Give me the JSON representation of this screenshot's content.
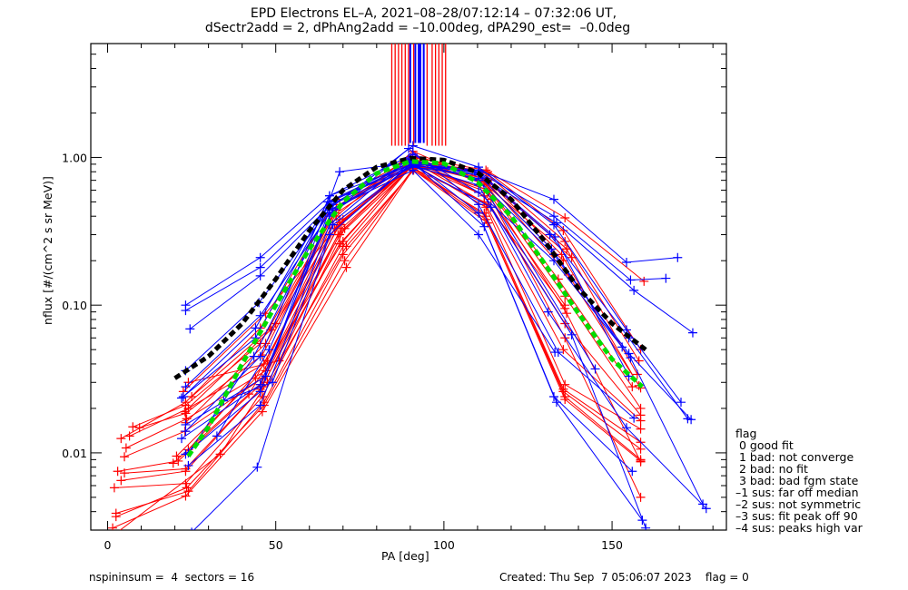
{
  "title_line1": "EPD Electrons EL–A, 2021–08–28/07:12:14 – 07:32:06 UT,",
  "title_line2": "dSectr2add = 2, dPhAng2add = –10.00deg, dPA290_est=  –0.0deg",
  "footer": {
    "left": "nspininsum =  4  sectors = 16",
    "right": "Created: Thu Sep  7 05:06:07 2023    flag = 0"
  },
  "legend": {
    "title": "flag",
    "items": [
      " 0 good fit",
      " 1 bad: not converge",
      " 2 bad: no fit",
      " 3 bad: bad fgm state",
      "–1 sus: far off median",
      "–2 sus: not symmetric",
      "–3 sus: fit peak off 90",
      "–4 sus: peaks high var"
    ]
  },
  "colors": {
    "red": "#ff0000",
    "blue": "#0000ff",
    "black": "#000000",
    "green": "#00dd00"
  },
  "chart_data": {
    "type": "line",
    "title": "EPD Electrons EL-A, 2021-08-28/07:12:14 - 07:32:06 UT, dSectr2add = 2, dPhAng2add = -10.00deg, dPA290_est= -0.0deg",
    "xlabel": "PA [deg]",
    "ylabel": "nflux [#/(cm^2 s sr MeV)]",
    "xscale": "linear",
    "yscale": "log",
    "xlim": [
      -5,
      184
    ],
    "ylim": [
      0.003,
      5.9
    ],
    "xticks": [
      0,
      50,
      100,
      150
    ],
    "xtick_labels": [
      "0",
      "50",
      "100",
      "150"
    ],
    "yticks": [
      0.01,
      0.1,
      1.0
    ],
    "ytick_labels": [
      "0.01",
      "0.10",
      "1.00"
    ],
    "grid": false,
    "legend_position": "right-bottom-outside",
    "peak_markers": {
      "description": "vertical lines at top marking fitted peak PA per curve, from ~1.2 to top of axis",
      "red": [
        84.5,
        85.5,
        86.5,
        87.5,
        88.5,
        89.5,
        91.0,
        95.0,
        96.5,
        97.5,
        98.5,
        99.5,
        100.5
      ],
      "blue": [
        90.0,
        91.5,
        92.5,
        93.0,
        94.0
      ]
    },
    "series": [
      {
        "name": "blue-1",
        "color": "blue",
        "x": [
          23.2,
          45.4,
          66.0,
          90.8,
          110.3,
          132.7,
          154.3,
          169.5
        ],
        "y": [
          0.1,
          0.21,
          0.55,
          0.9,
          0.82,
          0.52,
          0.195,
          0.21
        ]
      },
      {
        "name": "blue-2",
        "color": "blue",
        "x": [
          23.2,
          45.4,
          66.0,
          90.8,
          110.3,
          132.7,
          155.5,
          166.0
        ],
        "y": [
          0.092,
          0.18,
          0.5,
          0.88,
          0.8,
          0.4,
          0.148,
          0.152
        ]
      },
      {
        "name": "blue-3",
        "color": "blue",
        "x": [
          24.5,
          45.4,
          66.0,
          90.8,
          110.3,
          133.5,
          156.5,
          174.0
        ],
        "y": [
          0.069,
          0.158,
          0.47,
          0.86,
          0.76,
          0.36,
          0.126,
          0.065
        ]
      },
      {
        "name": "blue-4",
        "color": "blue",
        "x": [
          23.2,
          45.0,
          66.0,
          90.8,
          110.3,
          132.7,
          154.3,
          170.5
        ],
        "y": [
          0.036,
          0.104,
          0.45,
          1.2,
          0.86,
          0.35,
          0.068,
          0.022
        ]
      },
      {
        "name": "blue-5",
        "color": "blue",
        "x": [
          23.2,
          45.4,
          66.0,
          90.8,
          110.3,
          131.5,
          155.0,
          172.5
        ],
        "y": [
          0.028,
          0.085,
          0.42,
          0.92,
          0.78,
          0.3,
          0.06,
          0.017
        ]
      },
      {
        "name": "blue-6",
        "color": "blue",
        "x": [
          22.5,
          44.0,
          65.5,
          90.8,
          110.3,
          132.7,
          155.0,
          173.5
        ],
        "y": [
          0.024,
          0.07,
          0.5,
          0.95,
          0.7,
          0.22,
          0.047,
          0.0168
        ]
      },
      {
        "name": "blue-7",
        "color": "blue",
        "x": [
          23.2,
          45.4,
          66.0,
          90.8,
          110.3,
          132.7,
          155.5,
          177.0
        ],
        "y": [
          0.014,
          0.045,
          0.55,
          1.05,
          0.58,
          0.2,
          0.044,
          0.0045
        ]
      },
      {
        "name": "blue-8",
        "color": "blue",
        "x": [
          23.2,
          47.0,
          66.0,
          90.8,
          110.3,
          131.0,
          154.3,
          178.0
        ],
        "y": [
          0.0155,
          0.033,
          0.44,
          0.88,
          0.65,
          0.09,
          0.0148,
          0.0042
        ]
      },
      {
        "name": "blue-9",
        "color": "blue",
        "x": [
          22.0,
          45.4,
          66.0,
          89.5,
          110.3,
          134.0,
          156.5
        ],
        "y": [
          0.0125,
          0.029,
          0.4,
          1.15,
          0.48,
          0.048,
          0.0172
        ]
      },
      {
        "name": "blue-10",
        "color": "blue",
        "x": [
          23.2,
          45.4,
          69.0,
          90.8,
          110.3,
          132.7,
          156.0
        ],
        "y": [
          0.0098,
          0.026,
          0.8,
          0.93,
          0.42,
          0.024,
          0.0075
        ]
      },
      {
        "name": "blue-11",
        "color": "blue",
        "x": [
          24.0,
          45.4,
          66.0,
          89.5,
          112.0,
          133.5,
          159.0
        ],
        "y": [
          0.0082,
          0.021,
          0.35,
          0.98,
          0.34,
          0.022,
          0.0035
        ]
      },
      {
        "name": "blue-12",
        "color": "blue",
        "x": [
          25.0,
          44.5,
          66.0,
          90.0,
          114.0,
          138.0,
          160.0
        ],
        "y": [
          0.0029,
          0.008,
          0.3,
          0.9,
          0.46,
          0.063,
          0.0031
        ]
      },
      {
        "name": "blue-13",
        "color": "blue",
        "x": [
          32.5,
          48.0,
          67.0,
          90.8,
          110.3,
          133.0
        ],
        "y": [
          0.013,
          0.05,
          0.45,
          0.82,
          0.3,
          0.048
        ]
      },
      {
        "name": "blue-14",
        "color": "blue",
        "x": [
          34.5,
          49.0,
          67.0,
          90.8,
          110.3,
          145.0
        ],
        "y": [
          0.0225,
          0.03,
          0.35,
          0.9,
          0.72,
          0.037
        ]
      },
      {
        "name": "blue-15",
        "color": "blue",
        "x": [
          24.0,
          43.5,
          66.5,
          90.8,
          110.3,
          133.0,
          155.0
        ],
        "y": [
          0.01,
          0.045,
          0.48,
          0.95,
          0.8,
          0.29,
          0.033
        ]
      },
      {
        "name": "blue-16",
        "color": "blue",
        "x": [
          22.0,
          44.0,
          66.0,
          91.0,
          110.3,
          132.0,
          153.0
        ],
        "y": [
          0.0235,
          0.06,
          0.5,
          0.92,
          0.76,
          0.24,
          0.052
        ]
      },
      {
        "name": "red-1",
        "color": "red",
        "x": [
          4.0,
          23.2,
          45.4,
          68.0,
          90.8,
          112.5,
          136.0,
          159.5
        ],
        "y": [
          0.0125,
          0.022,
          0.07,
          0.52,
          1.0,
          0.82,
          0.39,
          0.145
        ]
      },
      {
        "name": "red-2",
        "color": "red",
        "x": [
          7.5,
          23.2,
          45.4,
          68.0,
          90.8,
          113.0,
          135.5,
          158.5
        ],
        "y": [
          0.015,
          0.021,
          0.055,
          0.45,
          0.95,
          0.8,
          0.32,
          0.05
        ]
      },
      {
        "name": "red-3",
        "color": "red",
        "x": [
          9.5,
          23.2,
          46.0,
          68.0,
          90.8,
          112.5,
          136.0,
          158.0
        ],
        "y": [
          0.0148,
          0.0185,
          0.046,
          0.42,
          0.93,
          0.78,
          0.27,
          0.042
        ]
      },
      {
        "name": "red-4",
        "color": "red",
        "x": [
          6.5,
          24.0,
          46.5,
          69.0,
          90.8,
          112.5,
          136.5,
          157.5
        ],
        "y": [
          0.013,
          0.02,
          0.04,
          0.38,
          0.9,
          0.72,
          0.24,
          0.034
        ]
      },
      {
        "name": "red-5",
        "color": "red",
        "x": [
          5.5,
          23.5,
          47.0,
          69.0,
          91.0,
          113.0,
          135.0,
          158.0
        ],
        "y": [
          0.0108,
          0.017,
          0.036,
          0.36,
          0.88,
          0.7,
          0.22,
          0.0285
        ]
      },
      {
        "name": "red-6",
        "color": "red",
        "x": [
          5.0,
          23.0,
          46.0,
          69.5,
          91.0,
          113.0,
          137.0,
          158.5
        ],
        "y": [
          0.0094,
          0.014,
          0.032,
          0.33,
          0.9,
          0.68,
          0.16,
          0.0275
        ]
      },
      {
        "name": "red-7",
        "color": "red",
        "x": [
          3.0,
          21.0,
          45.5,
          69.0,
          90.8,
          113.5,
          136.0,
          158.5
        ],
        "y": [
          0.0075,
          0.0088,
          0.029,
          0.3,
          0.88,
          0.6,
          0.115,
          0.02
        ]
      },
      {
        "name": "red-8",
        "color": "red",
        "x": [
          5.0,
          23.2,
          46.0,
          68.5,
          90.8,
          112.0,
          136.0,
          158.5
        ],
        "y": [
          0.0073,
          0.0078,
          0.028,
          0.3,
          0.92,
          0.55,
          0.075,
          0.018
        ]
      },
      {
        "name": "red-9",
        "color": "red",
        "x": [
          4.0,
          23.2,
          45.4,
          69.0,
          90.0,
          112.0,
          135.5,
          158.5
        ],
        "y": [
          0.0065,
          0.0075,
          0.027,
          0.26,
          0.86,
          0.5,
          0.05,
          0.0165
        ]
      },
      {
        "name": "red-10",
        "color": "red",
        "x": [
          2.0,
          23.2,
          46.0,
          70.0,
          90.8,
          112.5,
          136.0,
          158.5
        ],
        "y": [
          0.0058,
          0.0062,
          0.024,
          0.25,
          0.9,
          0.46,
          0.029,
          0.0145
        ]
      },
      {
        "name": "red-11",
        "color": "red",
        "x": [
          2.5,
          24.0,
          46.5,
          70.0,
          90.8,
          112.0,
          135.5,
          158.5
        ],
        "y": [
          0.0039,
          0.0055,
          0.022,
          0.22,
          0.82,
          0.42,
          0.027,
          0.0118
        ]
      },
      {
        "name": "red-12",
        "color": "red",
        "x": [
          2.5,
          23.5,
          46.5,
          70.5,
          91.0,
          112.5,
          135.5,
          158.5
        ],
        "y": [
          0.0037,
          0.0058,
          0.021,
          0.2,
          0.85,
          0.4,
          0.026,
          0.0106
        ]
      },
      {
        "name": "red-13",
        "color": "red",
        "x": [
          1.5,
          23.2,
          46.0,
          71.0,
          91.0,
          112.5,
          136.0,
          158.5
        ],
        "y": [
          0.0031,
          0.0051,
          0.019,
          0.18,
          0.84,
          0.38,
          0.024,
          0.009
        ]
      },
      {
        "name": "red-14",
        "color": "red",
        "x": [
          2.0,
          33.5,
          47.5,
          71.0,
          91.0,
          113.0,
          136.0,
          158.5
        ],
        "y": [
          0.0028,
          0.0098,
          0.03,
          0.25,
          0.82,
          0.36,
          0.023,
          0.0088
        ]
      },
      {
        "name": "red-15",
        "color": "red",
        "x": [
          19.5,
          42.0,
          70.0,
          90.8,
          113.0,
          136.5,
          158.5
        ],
        "y": [
          0.0085,
          0.025,
          0.27,
          0.92,
          0.6,
          0.088,
          0.0087
        ]
      },
      {
        "name": "red-16",
        "color": "red",
        "x": [
          20.5,
          44.0,
          69.0,
          90.8,
          113.0,
          136.0,
          158.5
        ],
        "y": [
          0.0095,
          0.032,
          0.35,
          0.9,
          0.58,
          0.06,
          0.005
        ]
      },
      {
        "name": "red-17",
        "color": "red",
        "x": [
          24.0,
          47.5,
          68.0,
          90.8,
          112.0,
          134.0,
          156.0
        ],
        "y": [
          0.0105,
          0.042,
          0.4,
          1.1,
          0.68,
          0.15,
          0.028
        ]
      },
      {
        "name": "red-18",
        "color": "red",
        "x": [
          23.2,
          47.0,
          68.0,
          90.8,
          113.0,
          136.5
        ],
        "y": [
          0.016,
          0.055,
          0.44,
          1.05,
          0.7,
          0.24
        ]
      },
      {
        "name": "red-19",
        "color": "red",
        "x": [
          23.0,
          48.5,
          69.0,
          90.8,
          113.0,
          135.5
        ],
        "y": [
          0.019,
          0.068,
          0.48,
          0.97,
          0.66,
          0.2
        ]
      },
      {
        "name": "red-20",
        "color": "red",
        "x": [
          25.0,
          50.0,
          67.5,
          91.5,
          112.5,
          138.0
        ],
        "y": [
          0.024,
          0.075,
          0.33,
          1.0,
          0.65,
          0.21
        ]
      },
      {
        "name": "red-21",
        "color": "red",
        "x": [
          22.5,
          47.0,
          70.0,
          92.0,
          114.0,
          136.0
        ],
        "y": [
          0.026,
          0.088,
          0.38,
          0.95,
          0.52,
          0.1
        ]
      },
      {
        "name": "red-22",
        "color": "red",
        "x": [
          24.0,
          51.0,
          70.5,
          90.8,
          113.0,
          136.0
        ],
        "y": [
          0.03,
          0.042,
          0.33,
          0.94,
          0.48,
          0.095
        ]
      },
      {
        "name": "median-fit-black",
        "color": "black",
        "style": "dashed-thick",
        "x": [
          20,
          30,
          40,
          50,
          60,
          70,
          80,
          90,
          100,
          110,
          120,
          130,
          140,
          150,
          160
        ],
        "y": [
          0.032,
          0.045,
          0.075,
          0.15,
          0.32,
          0.6,
          0.86,
          0.99,
          0.96,
          0.79,
          0.52,
          0.27,
          0.13,
          0.075,
          0.05
        ]
      },
      {
        "name": "fit-green",
        "color": "green",
        "style": "dashed-thick",
        "x": [
          24,
          30,
          40,
          50,
          60,
          70,
          80,
          90,
          100,
          110,
          120,
          130,
          140,
          150,
          159
        ],
        "y": [
          0.0095,
          0.015,
          0.04,
          0.1,
          0.24,
          0.5,
          0.78,
          0.94,
          0.91,
          0.68,
          0.4,
          0.19,
          0.088,
          0.043,
          0.028
        ]
      }
    ]
  }
}
